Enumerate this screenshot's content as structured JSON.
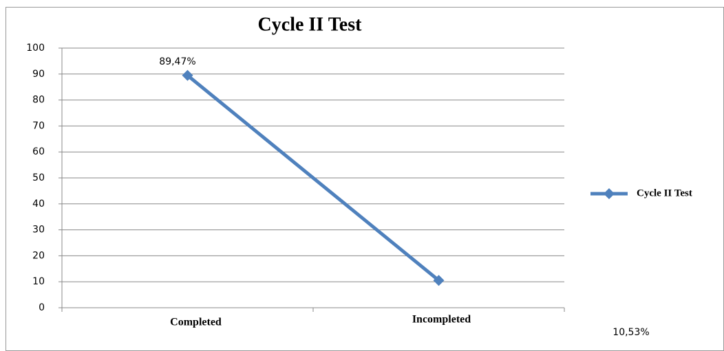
{
  "chart_data": {
    "type": "line",
    "title": "Cycle II Test",
    "categories": [
      "Completed",
      "Incompleted"
    ],
    "series": [
      {
        "name": "Cycle II Test",
        "color": "#4f81bd",
        "values": [
          89.47,
          10.53
        ],
        "value_labels": [
          "89,47%",
          "10,53%"
        ]
      }
    ],
    "ylim": [
      0,
      100
    ],
    "yticks": [
      0,
      10,
      20,
      30,
      40,
      50,
      60,
      70,
      80,
      90,
      100
    ],
    "grid": true,
    "legend": "right"
  }
}
